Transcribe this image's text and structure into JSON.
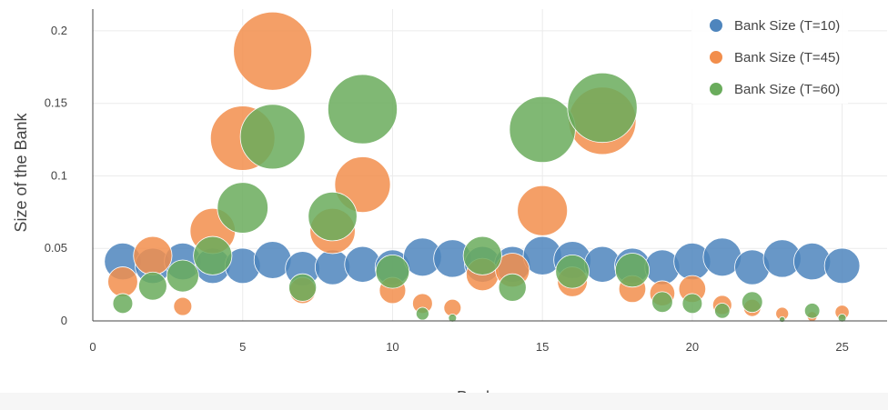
{
  "chart_data": {
    "type": "scatter",
    "xlabel": "Banks",
    "ylabel": "Size of the Bank",
    "xlim": [
      0,
      26.5
    ],
    "ylim": [
      0,
      0.215
    ],
    "x_ticks": [
      0,
      5,
      10,
      15,
      20,
      25
    ],
    "x_tick_labels": [
      "0",
      "5",
      "10",
      "15",
      "20",
      "25"
    ],
    "y_ticks": [
      0,
      0.05,
      0.1,
      0.15,
      0.2
    ],
    "y_tick_labels": [
      "0",
      "0.05",
      "0.1",
      "0.15",
      "0.2"
    ],
    "grid": true,
    "legend_position": "top-right",
    "series": [
      {
        "name": "Bank Size (T=10)",
        "color": "#4e85bd",
        "x": [
          1,
          2,
          3,
          4,
          5,
          6,
          7,
          8,
          9,
          10,
          11,
          12,
          13,
          14,
          15,
          16,
          17,
          18,
          19,
          20,
          21,
          22,
          23,
          24,
          25
        ],
        "y": [
          0.041,
          0.038,
          0.041,
          0.038,
          0.038,
          0.042,
          0.036,
          0.037,
          0.039,
          0.037,
          0.044,
          0.043,
          0.039,
          0.039,
          0.045,
          0.042,
          0.039,
          0.038,
          0.037,
          0.041,
          0.044,
          0.037,
          0.043,
          0.041,
          0.038
        ]
      },
      {
        "name": "Bank Size (T=45)",
        "color": "#f28e4c",
        "x": [
          1,
          2,
          3,
          4,
          5,
          6,
          7,
          8,
          9,
          10,
          11,
          12,
          13,
          14,
          15,
          16,
          17,
          18,
          19,
          20,
          21,
          22,
          23,
          24,
          25
        ],
        "y": [
          0.027,
          0.045,
          0.01,
          0.062,
          0.126,
          0.186,
          0.021,
          0.062,
          0.094,
          0.021,
          0.012,
          0.009,
          0.032,
          0.035,
          0.076,
          0.027,
          0.138,
          0.022,
          0.019,
          0.022,
          0.011,
          0.009,
          0.005,
          0.003,
          0.006
        ]
      },
      {
        "name": "Bank Size (T=60)",
        "color": "#6aac5c",
        "x": [
          1,
          2,
          3,
          4,
          5,
          6,
          7,
          8,
          9,
          10,
          11,
          12,
          13,
          14,
          15,
          16,
          17,
          18,
          19,
          20,
          21,
          22,
          23,
          24,
          25
        ],
        "y": [
          0.012,
          0.024,
          0.031,
          0.045,
          0.078,
          0.127,
          0.023,
          0.072,
          0.146,
          0.034,
          0.005,
          0.002,
          0.045,
          0.023,
          0.132,
          0.034,
          0.147,
          0.035,
          0.013,
          0.012,
          0.007,
          0.013,
          0.001,
          0.007,
          0.002
        ]
      }
    ]
  }
}
